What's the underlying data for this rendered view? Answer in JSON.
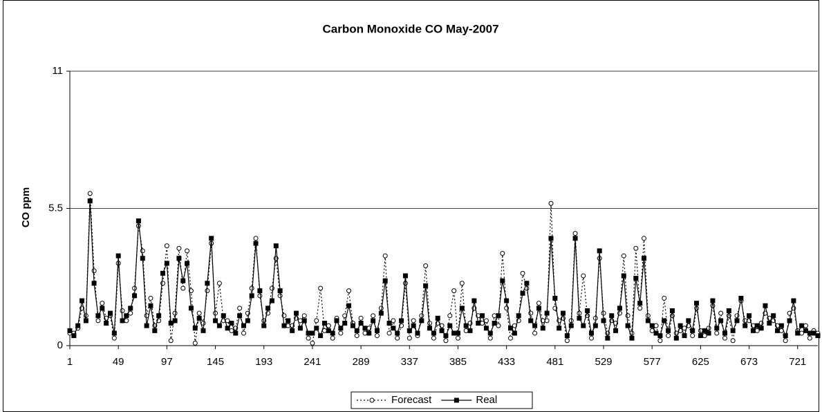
{
  "chart_data": {
    "type": "line",
    "title": "Carbon Monoxide CO May-2007",
    "y_label": "CO ppm",
    "x": [
      1,
      5,
      9,
      13,
      17,
      21,
      25,
      29,
      33,
      37,
      41,
      45,
      49,
      53,
      57,
      61,
      65,
      69,
      73,
      77,
      81,
      85,
      89,
      93,
      97,
      101,
      105,
      109,
      113,
      117,
      121,
      125,
      129,
      133,
      137,
      141,
      145,
      149,
      153,
      157,
      161,
      165,
      169,
      173,
      177,
      181,
      185,
      189,
      193,
      197,
      201,
      205,
      209,
      213,
      217,
      221,
      225,
      229,
      233,
      237,
      241,
      245,
      249,
      253,
      257,
      261,
      265,
      269,
      273,
      277,
      281,
      285,
      289,
      293,
      297,
      301,
      305,
      309,
      313,
      317,
      321,
      325,
      329,
      333,
      337,
      341,
      345,
      349,
      353,
      357,
      361,
      365,
      369,
      373,
      377,
      381,
      385,
      389,
      393,
      397,
      401,
      405,
      409,
      413,
      417,
      421,
      425,
      429,
      433,
      437,
      441,
      445,
      449,
      453,
      457,
      461,
      465,
      469,
      473,
      477,
      481,
      485,
      489,
      493,
      497,
      501,
      505,
      509,
      513,
      517,
      521,
      525,
      529,
      533,
      537,
      541,
      545,
      549,
      553,
      557,
      561,
      565,
      569,
      573,
      577,
      581,
      585,
      589,
      593,
      597,
      601,
      605,
      609,
      613,
      617,
      621,
      625,
      629,
      633,
      637,
      641,
      645,
      649,
      653,
      657,
      661,
      665,
      669,
      673,
      677,
      681,
      685,
      689,
      693,
      697,
      701,
      705,
      709,
      713,
      717,
      721,
      725,
      729,
      733,
      737,
      741
    ],
    "series": [
      {
        "name": "Forecast",
        "color": "#000000",
        "dash": "2,3",
        "marker": "circle",
        "values": [
          0.5,
          0.5,
          0.7,
          1.5,
          1.2,
          6.1,
          3.0,
          1.0,
          1.7,
          1.1,
          1.2,
          0.3,
          3.3,
          1.4,
          1.0,
          1.3,
          2.3,
          4.8,
          3.8,
          1.2,
          1.9,
          0.8,
          1.0,
          2.5,
          4.0,
          0.2,
          1.3,
          3.9,
          2.3,
          3.8,
          2.2,
          0.1,
          1.3,
          0.9,
          2.2,
          4.1,
          1.3,
          2.5,
          1.0,
          1.0,
          0.6,
          0.7,
          1.5,
          0.5,
          1.3,
          2.3,
          4.3,
          2.0,
          1.0,
          1.3,
          2.3,
          3.5,
          2.0,
          1.2,
          0.8,
          0.8,
          1.1,
          1.0,
          1.2,
          0.3,
          0.1,
          1.0,
          2.3,
          0.6,
          0.8,
          0.3,
          1.1,
          0.5,
          1.2,
          2.2,
          0.9,
          0.4,
          1.1,
          0.5,
          0.7,
          1.2,
          0.4,
          1.5,
          3.6,
          0.5,
          1.0,
          0.3,
          0.8,
          2.5,
          0.3,
          1.0,
          0.4,
          1.2,
          3.2,
          0.9,
          0.3,
          0.9,
          0.8,
          0.2,
          1.2,
          2.2,
          0.3,
          2.5,
          0.6,
          0.9,
          1.5,
          1.2,
          0.9,
          1.0,
          0.3,
          1.2,
          0.8,
          3.7,
          1.5,
          0.3,
          0.8,
          1.0,
          2.9,
          2.3,
          1.3,
          0.5,
          1.7,
          1.0,
          1.0,
          5.7,
          1.5,
          1.0,
          1.1,
          0.2,
          1.0,
          4.5,
          1.3,
          2.8,
          1.2,
          0.3,
          1.1,
          3.5,
          1.3,
          0.5,
          1.0,
          0.9,
          1.3,
          3.6,
          1.2,
          0.5,
          3.9,
          1.5,
          4.3,
          1.2,
          0.6,
          0.8,
          0.2,
          1.9,
          0.4,
          1.2,
          0.5,
          0.6,
          0.7,
          0.8,
          0.4,
          1.5,
          0.6,
          0.4,
          0.7,
          1.6,
          0.5,
          1.3,
          0.3,
          1.2,
          0.2,
          1.2,
          1.8,
          1.0,
          1.0,
          0.8,
          0.6,
          0.9,
          1.3,
          1.1,
          1.0,
          0.8,
          0.6,
          0.2,
          1.3,
          1.5,
          0.6,
          0.5,
          0.8,
          0.3,
          0.6,
          0.5
        ]
      },
      {
        "name": "Real",
        "color": "#000000",
        "dash": "none",
        "marker": "square",
        "values": [
          0.6,
          0.4,
          0.8,
          1.8,
          1.0,
          5.8,
          2.5,
          1.2,
          1.5,
          0.9,
          1.3,
          0.5,
          3.6,
          1.0,
          1.2,
          1.5,
          2.0,
          5.0,
          3.5,
          0.8,
          1.6,
          0.6,
          1.2,
          2.9,
          3.3,
          0.9,
          1.0,
          3.5,
          2.6,
          3.3,
          1.5,
          0.7,
          1.1,
          0.6,
          2.5,
          4.3,
          1.0,
          0.8,
          1.2,
          0.7,
          0.9,
          0.5,
          1.2,
          0.8,
          1.0,
          2.0,
          4.1,
          2.2,
          0.8,
          1.5,
          1.8,
          4.0,
          2.2,
          0.8,
          1.0,
          0.6,
          1.3,
          0.7,
          1.0,
          0.5,
          0.5,
          0.7,
          0.4,
          0.9,
          0.6,
          0.5,
          1.0,
          0.7,
          0.9,
          1.6,
          0.8,
          0.6,
          0.9,
          0.7,
          0.5,
          1.0,
          0.6,
          1.3,
          2.6,
          0.9,
          0.7,
          0.5,
          1.0,
          2.8,
          0.6,
          0.8,
          0.5,
          1.0,
          2.4,
          0.7,
          0.5,
          1.1,
          0.6,
          0.4,
          0.8,
          0.5,
          0.5,
          1.5,
          0.8,
          0.6,
          1.8,
          0.9,
          1.2,
          0.7,
          0.5,
          0.9,
          1.2,
          2.6,
          1.8,
          0.7,
          0.5,
          1.2,
          2.1,
          2.5,
          1.0,
          0.8,
          1.5,
          0.7,
          1.3,
          4.3,
          1.9,
          0.7,
          1.3,
          0.4,
          0.8,
          4.3,
          1.1,
          0.8,
          1.4,
          0.5,
          0.8,
          3.8,
          1.0,
          0.3,
          1.2,
          0.6,
          1.5,
          2.8,
          0.8,
          0.3,
          2.7,
          1.7,
          3.5,
          1.0,
          0.8,
          0.5,
          0.4,
          1.0,
          0.6,
          1.4,
          0.3,
          0.8,
          0.4,
          1.0,
          0.6,
          1.7,
          0.4,
          0.6,
          0.5,
          1.8,
          0.7,
          1.0,
          0.5,
          1.4,
          0.6,
          1.0,
          1.9,
          0.8,
          1.2,
          0.6,
          0.8,
          0.7,
          1.6,
          0.9,
          1.2,
          0.6,
          0.8,
          0.4,
          1.0,
          1.8,
          0.5,
          0.8,
          0.6,
          0.5,
          0.5,
          0.4
        ]
      }
    ],
    "xlim": [
      1,
      741
    ],
    "xticks": [
      1,
      49,
      97,
      145,
      193,
      241,
      289,
      337,
      385,
      433,
      481,
      529,
      577,
      625,
      673,
      721
    ],
    "ylim": [
      0,
      11
    ],
    "yticks": [
      0,
      5.5,
      11
    ],
    "grid": true,
    "legend_position": "bottom"
  }
}
